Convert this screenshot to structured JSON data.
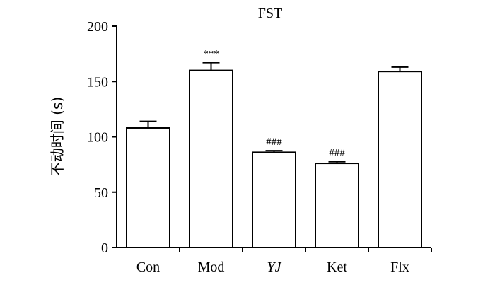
{
  "chart_data": {
    "type": "bar",
    "title": "FST",
    "ylabel": "不动时间 (s)",
    "xlabel": "",
    "ylim": [
      0,
      200
    ],
    "yticks": [
      0,
      50,
      100,
      150,
      200
    ],
    "grid": false,
    "categories": [
      "Con",
      "Mod",
      "YJ",
      "Ket",
      "Flx"
    ],
    "italic_categories": [
      "YJ"
    ],
    "values": [
      108,
      160,
      86,
      76,
      159
    ],
    "errors": [
      6,
      7,
      1.5,
      1.5,
      4
    ],
    "annotations": [
      "",
      "***",
      "###",
      "###",
      ""
    ]
  }
}
